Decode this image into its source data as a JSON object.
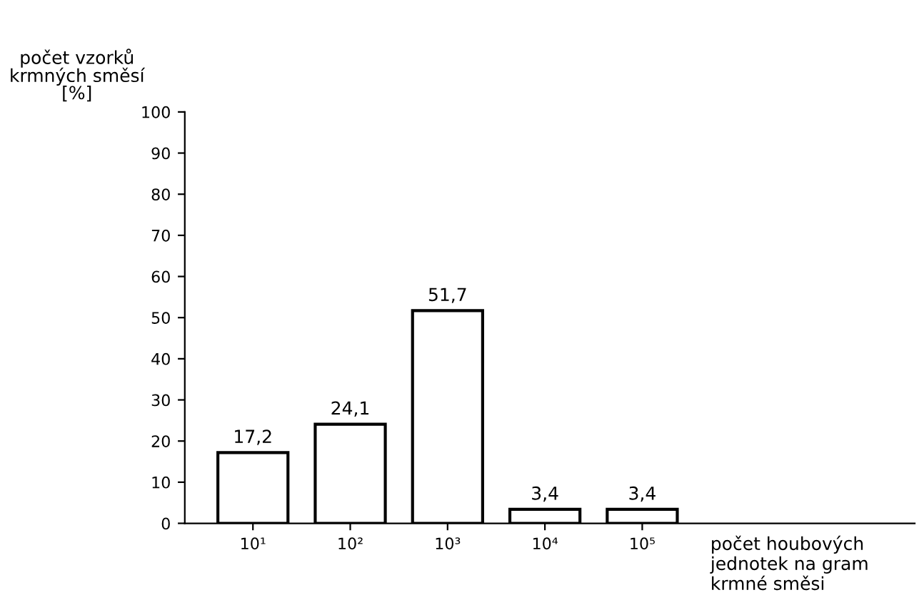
{
  "chart_data": {
    "type": "bar",
    "ylabel": "počet vzorků\nkrmných směsí\n[%]",
    "xlabel": "počet houbových\njednotek na gram\nkrmné směsi",
    "categories": [
      "10¹",
      "10²",
      "10³",
      "10⁴",
      "10⁵"
    ],
    "values": [
      17.2,
      24.1,
      51.7,
      3.4,
      3.4
    ],
    "value_labels": [
      "17,2",
      "24,1",
      "51,7",
      "3,4",
      "3,4"
    ],
    "color": "#ffffff",
    "ylim": [
      0,
      100
    ],
    "yticks": [
      0,
      10,
      20,
      30,
      40,
      50,
      60,
      70,
      80,
      90,
      100
    ],
    "grid": false
  }
}
